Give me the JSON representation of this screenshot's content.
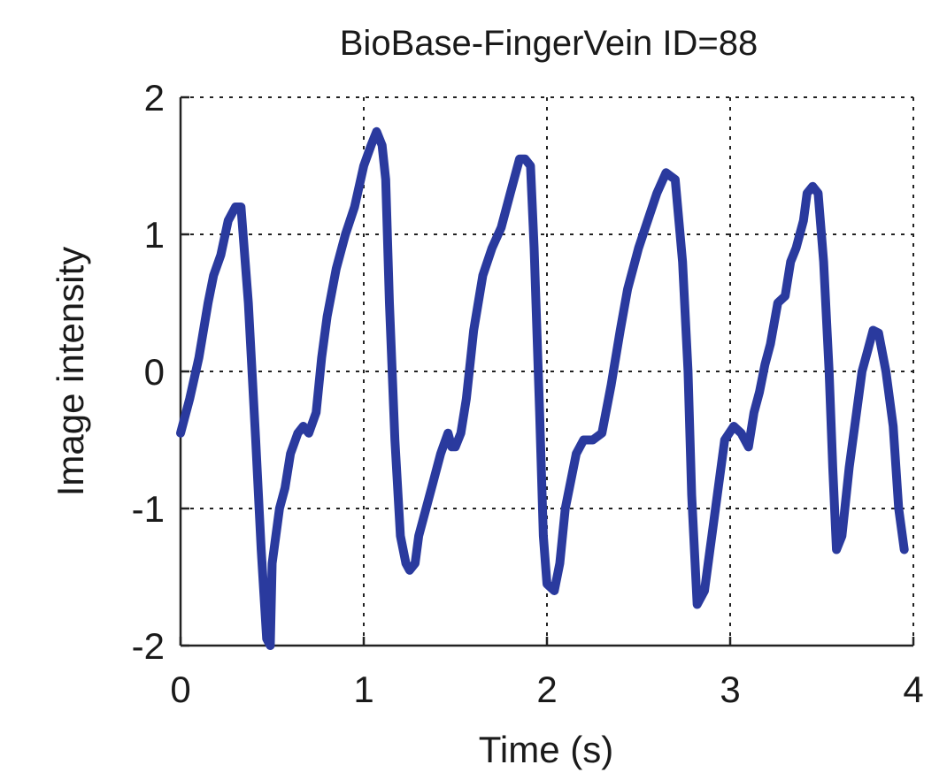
{
  "chart_data": {
    "type": "line",
    "title": "BioBase-FingerVein ID=88",
    "xlabel": "Time (s)",
    "ylabel": "Image intensity",
    "xlim": [
      0,
      4
    ],
    "ylim": [
      -2,
      2
    ],
    "x_ticks": [
      "0",
      "1",
      "2",
      "3",
      "4"
    ],
    "y_ticks": [
      "2",
      "1",
      "0",
      "-1",
      "-2"
    ],
    "grid": true,
    "line_color": "#2a3a9e",
    "series": [
      {
        "x": [
          0.0,
          0.05,
          0.1,
          0.15,
          0.18,
          0.22,
          0.26,
          0.3,
          0.33,
          0.37,
          0.41,
          0.44,
          0.47,
          0.49,
          0.5,
          0.54,
          0.57,
          0.6,
          0.64,
          0.67,
          0.7,
          0.74,
          0.77,
          0.8,
          0.85,
          0.9,
          0.95,
          1.0,
          1.04,
          1.07,
          1.1,
          1.12,
          1.14,
          1.17,
          1.2,
          1.23,
          1.25,
          1.28,
          1.3,
          1.34,
          1.38,
          1.42,
          1.46,
          1.48,
          1.5,
          1.53,
          1.56,
          1.6,
          1.65,
          1.7,
          1.75,
          1.8,
          1.85,
          1.88,
          1.91,
          1.93,
          1.96,
          1.98,
          2.0,
          2.04,
          2.07,
          2.1,
          2.13,
          2.16,
          2.2,
          2.25,
          2.3,
          2.35,
          2.4,
          2.44,
          2.47,
          2.5,
          2.55,
          2.6,
          2.65,
          2.7,
          2.74,
          2.77,
          2.79,
          2.82,
          2.86,
          2.89,
          2.9,
          2.93,
          2.97,
          3.02,
          3.06,
          3.1,
          3.13,
          3.16,
          3.19,
          3.22,
          3.26,
          3.3,
          3.33,
          3.36,
          3.4,
          3.42,
          3.45,
          3.48,
          3.51,
          3.54,
          3.56,
          3.58,
          3.61,
          3.65,
          3.69,
          3.72,
          3.75,
          3.78,
          3.81,
          3.85,
          3.89,
          3.92,
          3.95
        ],
        "y": [
          -0.45,
          -0.2,
          0.1,
          0.5,
          0.7,
          0.85,
          1.1,
          1.2,
          1.2,
          0.5,
          -0.5,
          -1.3,
          -1.95,
          -2.0,
          -1.4,
          -1.0,
          -0.85,
          -0.6,
          -0.45,
          -0.4,
          -0.45,
          -0.3,
          0.1,
          0.4,
          0.75,
          1.0,
          1.2,
          1.5,
          1.65,
          1.75,
          1.65,
          1.4,
          0.5,
          -0.5,
          -1.2,
          -1.4,
          -1.45,
          -1.4,
          -1.2,
          -1.0,
          -0.8,
          -0.6,
          -0.45,
          -0.55,
          -0.55,
          -0.45,
          -0.2,
          0.3,
          0.7,
          0.9,
          1.05,
          1.3,
          1.55,
          1.55,
          1.5,
          0.9,
          -0.3,
          -1.2,
          -1.55,
          -1.6,
          -1.4,
          -1.0,
          -0.8,
          -0.6,
          -0.5,
          -0.5,
          -0.45,
          -0.1,
          0.3,
          0.6,
          0.75,
          0.9,
          1.1,
          1.3,
          1.45,
          1.4,
          0.8,
          0.0,
          -0.9,
          -1.7,
          -1.6,
          -1.3,
          -1.2,
          -0.9,
          -0.5,
          -0.4,
          -0.45,
          -0.55,
          -0.3,
          -0.15,
          0.05,
          0.2,
          0.5,
          0.55,
          0.8,
          0.9,
          1.1,
          1.3,
          1.35,
          1.3,
          0.8,
          0.0,
          -0.7,
          -1.3,
          -1.2,
          -0.7,
          -0.3,
          0.0,
          0.15,
          0.3,
          0.28,
          0.0,
          -0.4,
          -1.0,
          -1.3
        ]
      }
    ]
  }
}
